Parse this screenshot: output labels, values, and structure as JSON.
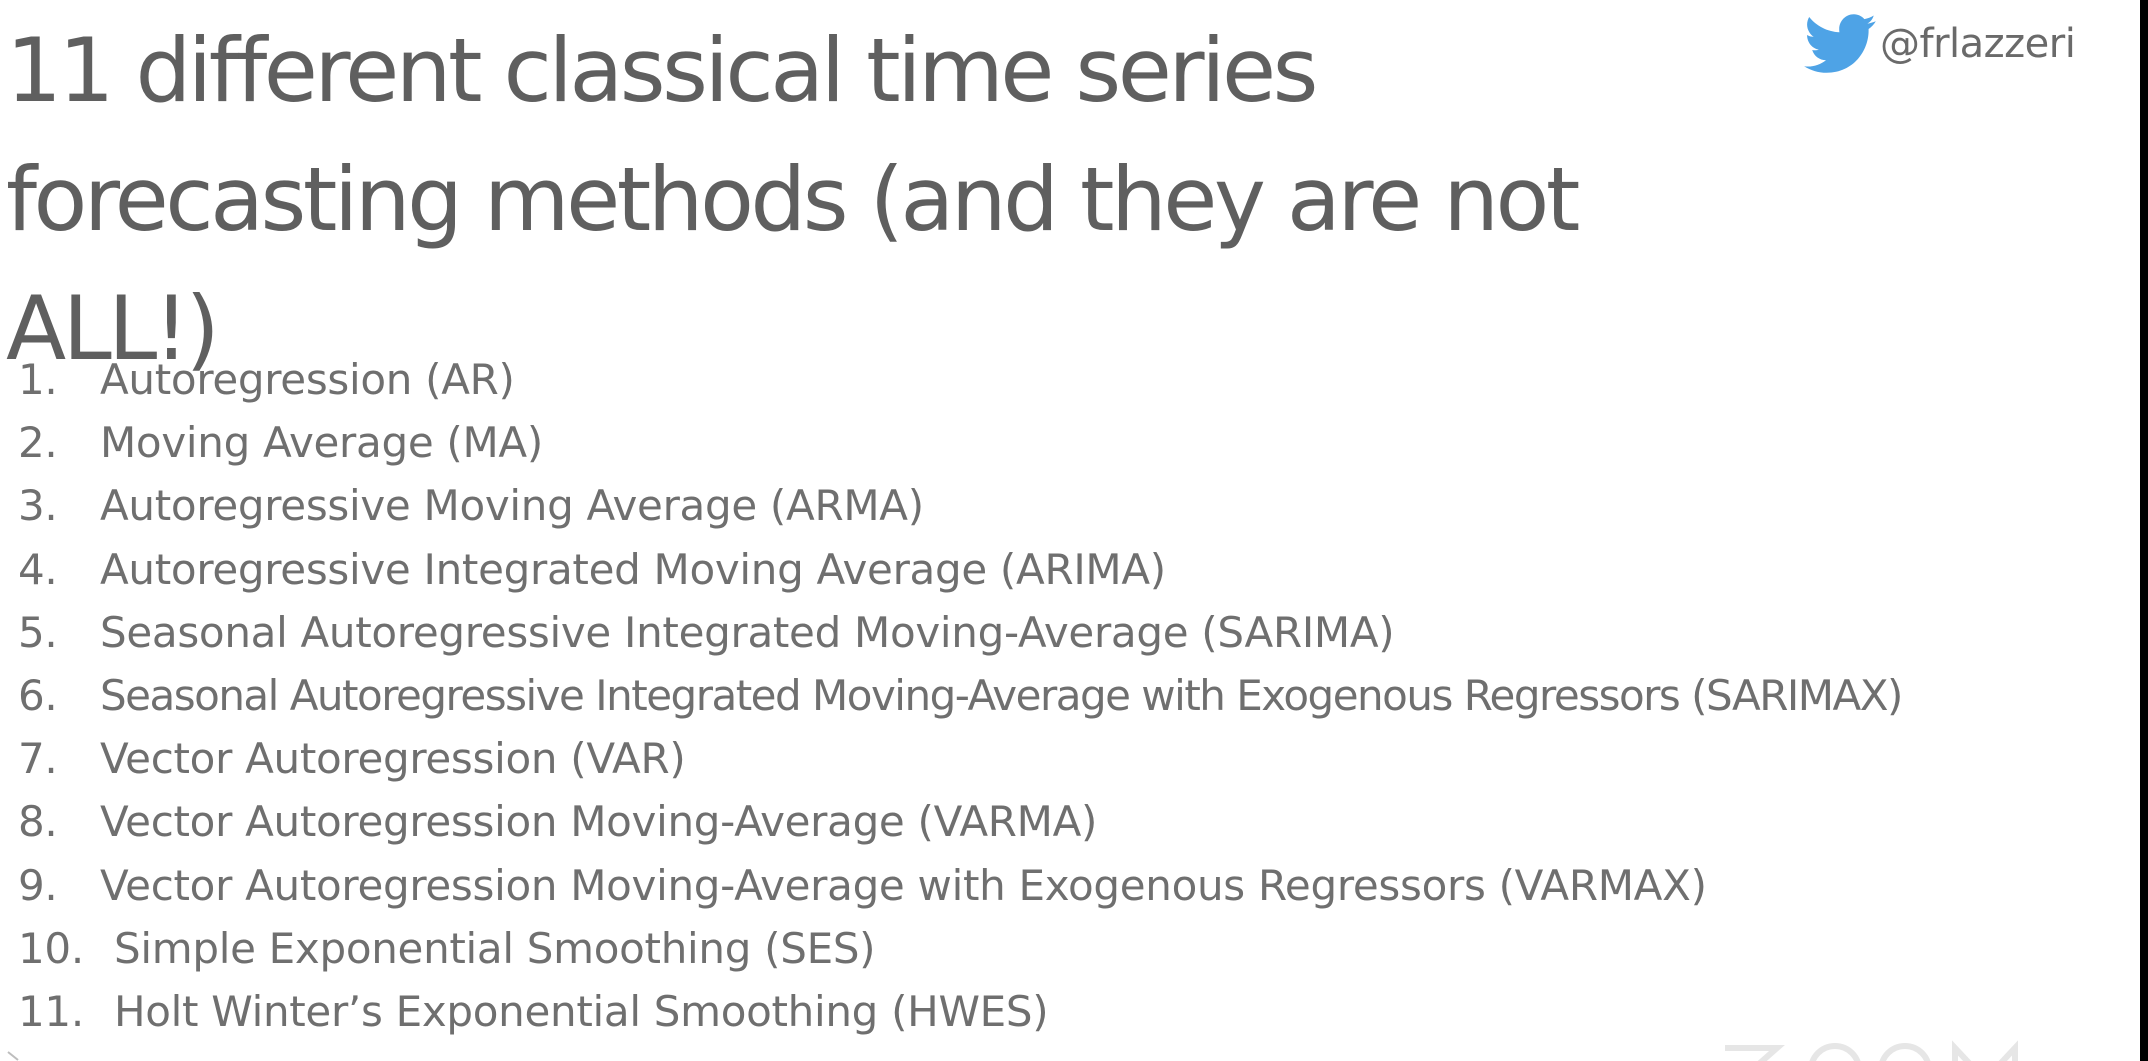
{
  "slide": {
    "title": "11 different classical time series forecasting methods (and they are not ALL!)",
    "twitter_handle": "@frlazzeri",
    "twitter_icon": "twitter-bird-icon",
    "colors": {
      "background": "#ffffff",
      "text": "#6f6f6f",
      "twitter_blue": "#4ea3e6"
    },
    "methods": [
      {
        "number": "1.",
        "label": "Autoregression (AR)"
      },
      {
        "number": "2.",
        "label": "Moving Average (MA)"
      },
      {
        "number": "3.",
        "label": "Autoregressive Moving Average (ARMA)"
      },
      {
        "number": "4.",
        "label": "Autoregressive Integrated Moving Average (ARIMA)"
      },
      {
        "number": "5.",
        "label": "Seasonal Autoregressive Integrated Moving-Average (SARIMA)"
      },
      {
        "number": "6.",
        "label": "Seasonal Autoregressive Integrated Moving-Average with Exogenous Regressors (SARIMAX)"
      },
      {
        "number": "7.",
        "label": "Vector Autoregression (VAR)"
      },
      {
        "number": "8.",
        "label": "Vector Autoregression Moving-Average (VARMA)"
      },
      {
        "number": "9.",
        "label": "Vector Autoregression Moving-Average with Exogenous Regressors (VARMAX)"
      },
      {
        "number": "10.",
        "label": "Simple Exponential Smoothing (SES)"
      },
      {
        "number": "11.",
        "label": "Holt Winter’s Exponential Smoothing (HWES)"
      }
    ]
  }
}
